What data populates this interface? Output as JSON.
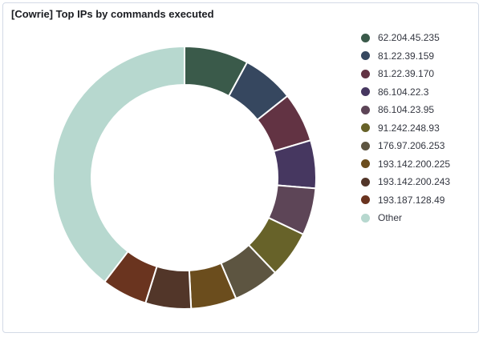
{
  "panel": {
    "title": "[Cowrie] Top IPs by commands executed"
  },
  "chart_data": {
    "type": "pie",
    "donut": true,
    "legend_position": "right",
    "categories": [
      "62.204.45.235",
      "81.22.39.159",
      "81.22.39.170",
      "86.104.22.3",
      "86.104.23.95",
      "91.242.248.93",
      "176.97.206.253",
      "193.142.200.225",
      "193.142.200.243",
      "193.187.128.49",
      "Other"
    ],
    "values": [
      7.9,
      6.4,
      6.1,
      5.9,
      5.8,
      5.8,
      5.7,
      5.6,
      5.6,
      5.6,
      39.6
    ],
    "colors": [
      "#3a5a4a",
      "#36475f",
      "#623343",
      "#463760",
      "#5d4557",
      "#676229",
      "#5d5541",
      "#6b4d1d",
      "#523629",
      "#6a341f",
      "#b7d8cf"
    ]
  }
}
